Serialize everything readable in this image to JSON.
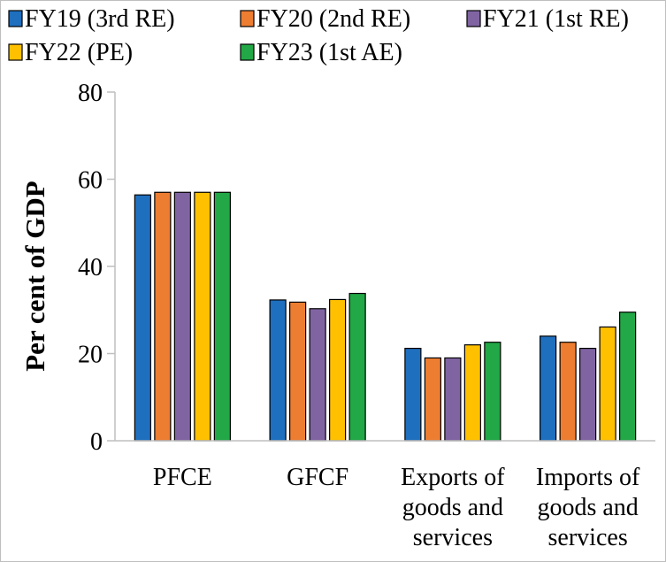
{
  "chart_data": {
    "type": "bar",
    "title": "",
    "xlabel": "",
    "ylabel": "Per cent of GDP",
    "ylim": [
      0,
      80
    ],
    "yticks": [
      0,
      20,
      40,
      60,
      80
    ],
    "grid": false,
    "legend_position": "top",
    "categories": [
      [
        "PFCE"
      ],
      [
        "GFCF"
      ],
      [
        "Exports of",
        "goods and",
        "services"
      ],
      [
        "Imports of",
        "goods and",
        "services"
      ]
    ],
    "series": [
      {
        "name": "FY19 (3rd RE)",
        "color": "#1f6fbf",
        "values": [
          56.4,
          32.3,
          21.2,
          24.0
        ]
      },
      {
        "name": "FY20 (2nd RE)",
        "color": "#ed7d31",
        "values": [
          57.0,
          31.8,
          19.0,
          22.6
        ]
      },
      {
        "name": "FY21 (1st RE)",
        "color": "#8064a2",
        "values": [
          57.0,
          30.3,
          19.0,
          21.2
        ]
      },
      {
        "name": "FY22 (PE)",
        "color": "#ffc000",
        "values": [
          57.0,
          32.4,
          22.0,
          26.1
        ]
      },
      {
        "name": "FY23 (1st AE)",
        "color": "#22a846",
        "values": [
          57.0,
          33.8,
          22.6,
          29.5
        ]
      }
    ]
  }
}
